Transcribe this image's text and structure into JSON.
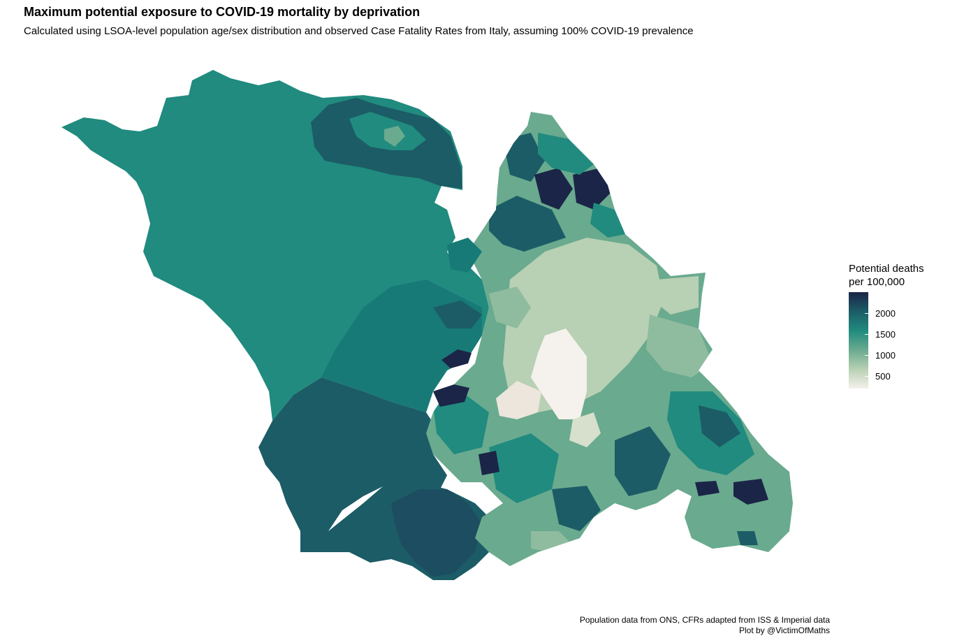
{
  "title": "Maximum potential exposure to COVID-19 mortality by deprivation",
  "subtitle": "Calculated using LSOA-level population age/sex distribution and observed Case Fatality Rates from Italy, assuming 100% COVID-19 prevalence",
  "legend": {
    "title": "Potential deaths\nper 100,000",
    "ticks": [
      {
        "label": "2000",
        "value": 2000
      },
      {
        "label": "1500",
        "value": 1500
      },
      {
        "label": "1000",
        "value": 1000
      },
      {
        "label": "500",
        "value": 500
      }
    ],
    "range": [
      200,
      2500
    ],
    "colors": {
      "low": "#f5f1ec",
      "mid_low": "#b8d0b4",
      "mid": "#6aaa8f",
      "mid_high": "#208b7e",
      "high": "#1c5c66",
      "top": "#1b2547"
    }
  },
  "caption": {
    "line1": "Population data from ONS, CFRs adapted from ISS & Imperial data",
    "line2": "Plot by @VictimOfMaths"
  }
}
